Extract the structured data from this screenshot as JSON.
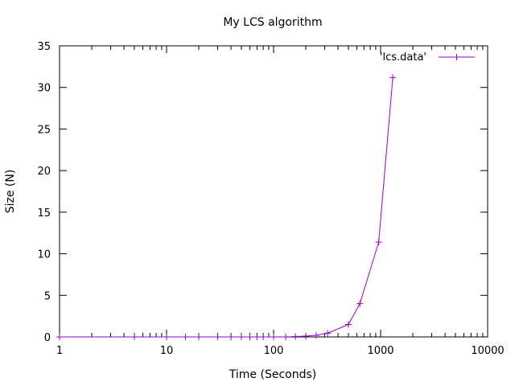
{
  "chart_data": {
    "type": "line",
    "title": "My LCS algorithm",
    "xlabel": "Time (Seconds)",
    "ylabel": "Size (N)",
    "xscale": "log",
    "xlim": [
      1,
      10000
    ],
    "ylim": [
      0,
      35
    ],
    "x_ticks": [
      1,
      10,
      100,
      1000,
      10000
    ],
    "x_tick_labels": [
      "1",
      "10",
      "100",
      "1000",
      "10000"
    ],
    "y_ticks": [
      0,
      5,
      10,
      15,
      20,
      25,
      30,
      35
    ],
    "y_tick_labels": [
      "0",
      "5",
      "10",
      "15",
      "20",
      "25",
      "30",
      "35"
    ],
    "grid": false,
    "legend_position": "top-right",
    "series": [
      {
        "name": "'lcs.data'",
        "color": "#9400d3",
        "marker": "plus",
        "x": [
          1,
          5,
          10,
          15,
          20,
          30,
          40,
          50,
          60,
          70,
          80,
          100,
          130,
          160,
          200,
          250,
          320,
          500,
          640,
          960,
          1300
        ],
        "y": [
          0,
          0,
          0,
          0,
          0,
          0,
          0,
          0,
          0,
          0,
          0,
          0,
          0,
          0.05,
          0.1,
          0.2,
          0.45,
          1.5,
          4.0,
          11.4,
          31.2
        ]
      }
    ]
  }
}
